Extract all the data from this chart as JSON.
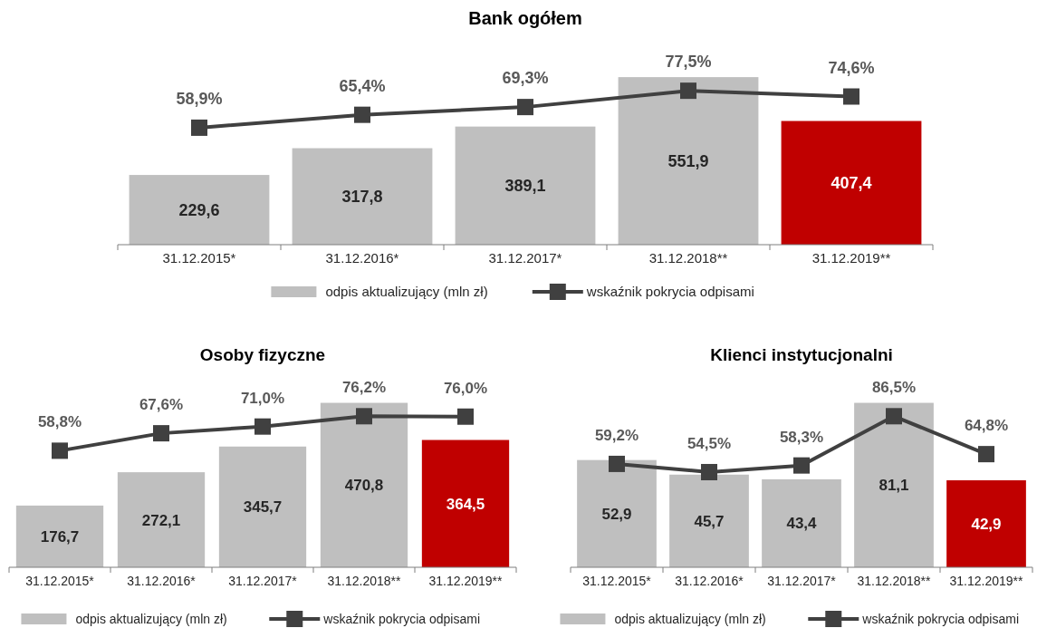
{
  "chart_data": [
    {
      "type": "bar",
      "title": "Bank ogółem",
      "categories": [
        "31.12.2015*",
        "31.12.2016*",
        "31.12.2017*",
        "31.12.2018**",
        "31.12.2019**"
      ],
      "marker": "square",
      "legend": "bottom",
      "series": [
        {
          "name": "odpis aktualizujący (mln zł)",
          "color": "#bfbfbf",
          "colors": [
            "#bfbfbf",
            "#bfbfbf",
            "#bfbfbf",
            "#bfbfbf",
            "#c00000"
          ],
          "values": [
            229.6,
            317.8,
            389.1,
            551.9,
            407.4
          ],
          "value_labels": [
            "229,6",
            "317,8",
            "389,1",
            "551,9",
            "407,4"
          ]
        },
        {
          "name": "wskaźnik pokrycia odpisami",
          "type": "line",
          "axis": "y2",
          "color": "#404040",
          "values": [
            58.9,
            65.4,
            69.3,
            77.5,
            74.6
          ],
          "value_labels": [
            "58,9%",
            "65,4%",
            "69,3%",
            "77,5%",
            "74,6%"
          ]
        }
      ]
    },
    {
      "type": "bar",
      "title": "Osoby fizyczne",
      "categories": [
        "31.12.2015*",
        "31.12.2016*",
        "31.12.2017*",
        "31.12.2018**",
        "31.12.2019**"
      ],
      "marker": "square",
      "legend": "bottom",
      "series": [
        {
          "name": "odpis aktualizujący (mln zł)",
          "color": "#bfbfbf",
          "colors": [
            "#bfbfbf",
            "#bfbfbf",
            "#bfbfbf",
            "#bfbfbf",
            "#c00000"
          ],
          "values": [
            176.7,
            272.1,
            345.7,
            470.8,
            364.5
          ],
          "value_labels": [
            "176,7",
            "272,1",
            "345,7",
            "470,8",
            "364,5"
          ]
        },
        {
          "name": "wskaźnik pokrycia odpisami",
          "type": "line",
          "axis": "y2",
          "color": "#404040",
          "values": [
            58.8,
            67.6,
            71.0,
            76.2,
            76.0
          ],
          "value_labels": [
            "58,8%",
            "67,6%",
            "71,0%",
            "76,2%",
            "76,0%"
          ]
        }
      ]
    },
    {
      "type": "bar",
      "title": "Klienci instytucjonalni",
      "categories": [
        "31.12.2015*",
        "31.12.2016*",
        "31.12.2017*",
        "31.12.2018**",
        "31.12.2019**"
      ],
      "marker": "square",
      "legend": "bottom",
      "series": [
        {
          "name": "odpis aktualizujący (mln zł)",
          "color": "#bfbfbf",
          "colors": [
            "#bfbfbf",
            "#bfbfbf",
            "#bfbfbf",
            "#bfbfbf",
            "#c00000"
          ],
          "values": [
            52.9,
            45.7,
            43.4,
            81.1,
            42.9
          ],
          "value_labels": [
            "52,9",
            "45,7",
            "43,4",
            "81,1",
            "42,9"
          ]
        },
        {
          "name": "wskaźnik pokrycia odpisami",
          "type": "line",
          "axis": "y2",
          "color": "#404040",
          "values": [
            59.2,
            54.5,
            58.3,
            86.5,
            64.8
          ],
          "value_labels": [
            "59,2%",
            "54,5%",
            "58,3%",
            "86,5%",
            "64,8%"
          ]
        }
      ]
    }
  ]
}
